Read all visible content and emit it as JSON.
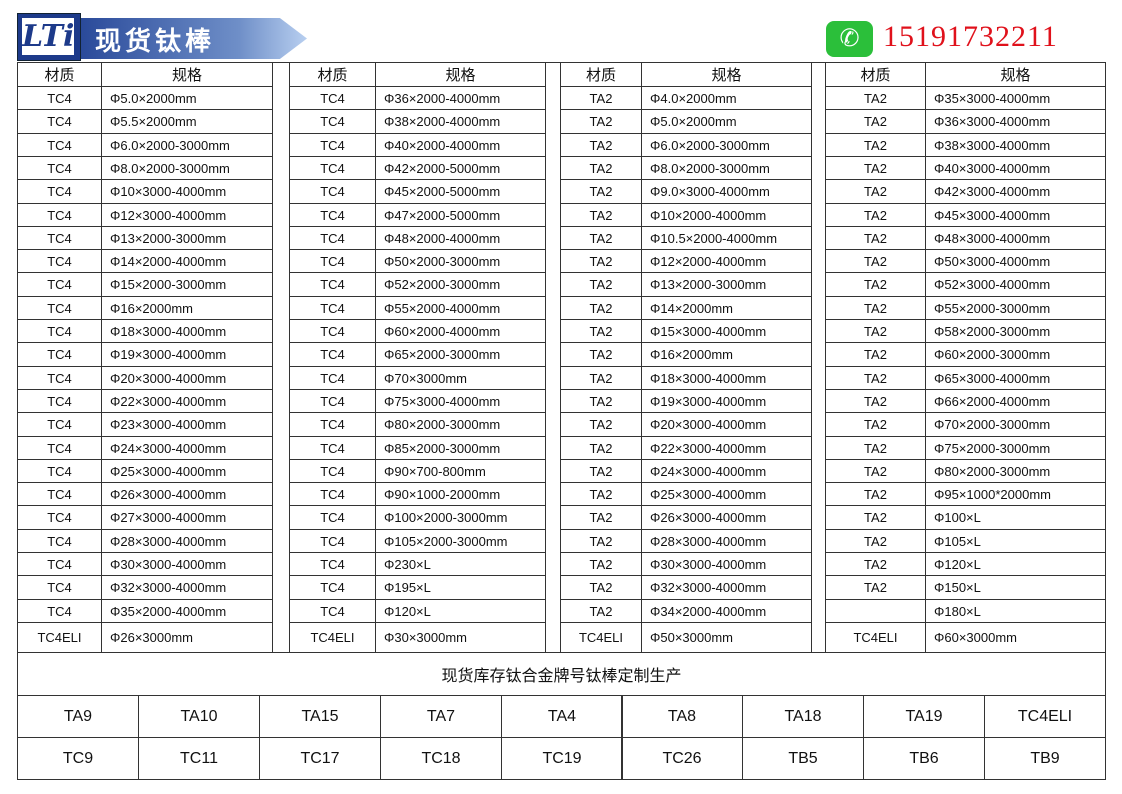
{
  "header": {
    "logo_text": "LTi",
    "title": "现货钛棒",
    "phone": "15191732211",
    "wechat_icon": "wechat-phone-icon",
    "phone_color": "#e0111b"
  },
  "table": {
    "col_material": "材质",
    "col_spec": "规格",
    "groups": [
      {
        "material": "TC4",
        "specs": [
          "Φ5.0×2000mm",
          "Φ5.5×2000mm",
          "Φ6.0×2000-3000mm",
          "Φ8.0×2000-3000mm",
          "Φ10×3000-4000mm",
          "Φ12×3000-4000mm",
          "Φ13×2000-3000mm",
          "Φ14×2000-4000mm",
          "Φ15×2000-3000mm",
          "Φ16×2000mm",
          "Φ18×3000-4000mm",
          "Φ19×3000-4000mm",
          "Φ20×3000-4000mm",
          "Φ22×3000-4000mm",
          "Φ23×3000-4000mm",
          "Φ24×3000-4000mm",
          "Φ25×3000-4000mm",
          "Φ26×3000-4000mm",
          "Φ27×3000-4000mm",
          "Φ28×3000-4000mm",
          "Φ30×3000-4000mm",
          "Φ32×3000-4000mm",
          "Φ35×2000-4000mm"
        ],
        "last_material": "TC4ELI",
        "last_spec": "Φ26×3000mm"
      },
      {
        "material": "TC4",
        "specs": [
          "Φ36×2000-4000mm",
          "Φ38×2000-4000mm",
          "Φ40×2000-4000mm",
          "Φ42×2000-5000mm",
          "Φ45×2000-5000mm",
          "Φ47×2000-5000mm",
          "Φ48×2000-4000mm",
          "Φ50×2000-3000mm",
          "Φ52×2000-3000mm",
          "Φ55×2000-4000mm",
          "Φ60×2000-4000mm",
          "Φ65×2000-3000mm",
          "Φ70×3000mm",
          "Φ75×3000-4000mm",
          "Φ80×2000-3000mm",
          "Φ85×2000-3000mm",
          "Φ90×700-800mm",
          "Φ90×1000-2000mm",
          "Φ100×2000-3000mm",
          "Φ105×2000-3000mm",
          "Φ230×L",
          "Φ195×L",
          "Φ120×L"
        ],
        "last_material": "TC4ELI",
        "last_spec": "Φ30×3000mm"
      },
      {
        "material": "TA2",
        "specs": [
          "Φ4.0×2000mm",
          "Φ5.0×2000mm",
          "Φ6.0×2000-3000mm",
          "Φ8.0×2000-3000mm",
          "Φ9.0×3000-4000mm",
          "Φ10×2000-4000mm",
          "Φ10.5×2000-4000mm",
          "Φ12×2000-4000mm",
          "Φ13×2000-3000mm",
          "Φ14×2000mm",
          "Φ15×3000-4000mm",
          "Φ16×2000mm",
          "Φ18×3000-4000mm",
          "Φ19×3000-4000mm",
          "Φ20×3000-4000mm",
          "Φ22×3000-4000mm",
          "Φ24×3000-4000mm",
          "Φ25×3000-4000mm",
          "Φ26×3000-4000mm",
          "Φ28×3000-4000mm",
          "Φ30×3000-4000mm",
          "Φ32×3000-4000mm",
          "Φ34×2000-4000mm"
        ],
        "last_material": "TC4ELI",
        "last_spec": "Φ50×3000mm"
      },
      {
        "material": "TA2",
        "specs": [
          "Φ35×3000-4000mm",
          "Φ36×3000-4000mm",
          "Φ38×3000-4000mm",
          "Φ40×3000-4000mm",
          "Φ42×3000-4000mm",
          "Φ45×3000-4000mm",
          "Φ48×3000-4000mm",
          "Φ50×3000-4000mm",
          "Φ52×3000-4000mm",
          "Φ55×2000-3000mm",
          "Φ58×2000-3000mm",
          "Φ60×2000-3000mm",
          "Φ65×3000-4000mm",
          "Φ66×2000-4000mm",
          "Φ70×2000-3000mm",
          "Φ75×2000-3000mm",
          "Φ80×2000-3000mm",
          "Φ95×1000*2000mm",
          "Φ100×L",
          "Φ105×L",
          "Φ120×L",
          "Φ150×L",
          "Φ180×L"
        ],
        "blank_material_rows": [
          22
        ],
        "last_material": "TC4ELI",
        "last_spec": "Φ60×3000mm"
      }
    ]
  },
  "footer": {
    "caption": "现货库存钛合金牌号钛棒定制生产",
    "grades_row1": [
      "TA9",
      "TA10",
      "TA15",
      "TA7",
      "TA4",
      "TA8",
      "TA18",
      "TA19",
      "TC4ELI"
    ],
    "grades_row2": [
      "TC9",
      "TC11",
      "TC17",
      "TC18",
      "TC19",
      "TC26",
      "TB5",
      "TB6",
      "TB9"
    ]
  }
}
